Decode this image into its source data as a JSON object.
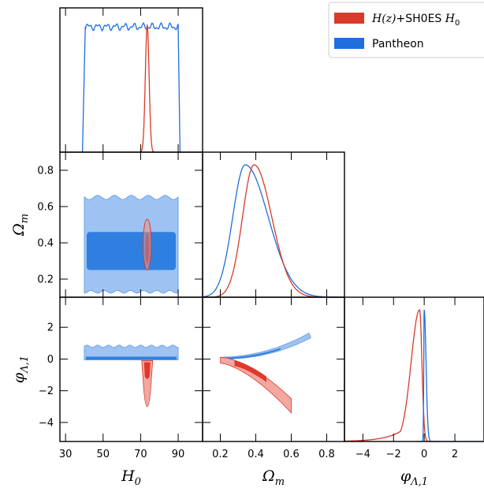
{
  "chart_data": {
    "type": "corner",
    "parameters": [
      {
        "key": "H0",
        "label": "H",
        "sub": "0",
        "range": [
          27,
          103
        ],
        "ticks": [
          "30",
          "50",
          "70",
          "90"
        ],
        "tick_values": [
          30,
          50,
          70,
          90
        ]
      },
      {
        "key": "Om",
        "label": "Ω",
        "sub": "m",
        "range": [
          0.1,
          0.9
        ],
        "ticks": [
          "0.2",
          "0.4",
          "0.6",
          "0.8"
        ],
        "tick_values": [
          0.2,
          0.4,
          0.6,
          0.8
        ]
      },
      {
        "key": "phi",
        "label": "φ",
        "sub": "Λ,1",
        "range": [
          -5.2,
          3.9
        ],
        "ticks": [
          "−4",
          "−2",
          "0",
          "2"
        ],
        "tick_values": [
          -4,
          -2,
          0,
          2
        ]
      }
    ],
    "y_ticks": {
      "Om": [
        "0.2",
        "0.4",
        "0.6",
        "0.8"
      ],
      "phi": [
        "2",
        "0",
        "−2",
        "−4"
      ]
    },
    "legend": {
      "placement": "top-right",
      "entries": [
        {
          "label_math": "H(z)",
          "label_rest": "+SH0ES ",
          "label_math2": "H",
          "label_sub": "0",
          "color": "#d93a2a"
        },
        {
          "label_plain": "Pantheon",
          "color": "#1f6fdc"
        }
      ]
    },
    "series": [
      {
        "name": "H(z)+SH0ES H0",
        "color": "#d93a2a",
        "marginals": {
          "H0": {
            "center": 73.5,
            "sigma": 1.0
          },
          "Om": {
            "peak": 0.39,
            "range": [
              0.2,
              0.6
            ]
          },
          "phi": {
            "peak": -0.3,
            "range": [
              -4.8,
              0
            ]
          }
        },
        "contours": {
          "H0_Om": {
            "center": [
              73.5,
              0.39
            ],
            "ellipse_2sigma": [
              2.2,
              0.14
            ]
          },
          "H0_phi": {
            "center": [
              73.5,
              -1.0
            ],
            "range_phi": [
              -3.0,
              -0.3
            ]
          },
          "Om_phi": {
            "ridge": [
              [
                0.2,
                0.0
              ],
              [
                0.35,
                -0.5
              ],
              [
                0.5,
                -1.6
              ],
              [
                0.6,
                -2.9
              ]
            ]
          }
        }
      },
      {
        "name": "Pantheon",
        "color": "#1f6fdc",
        "marginals": {
          "H0": {
            "flat_range": [
              40,
              90
            ]
          },
          "Om": {
            "peak": 0.34,
            "range": [
              0.2,
              0.9
            ]
          },
          "phi": {
            "peak": 0.0,
            "range": [
              -0.2,
              0.5
            ]
          }
        },
        "contours": {
          "H0_Om": {
            "range_H0": [
              40,
              90
            ],
            "range_Om_2sigma": [
              0.13,
              0.67
            ],
            "range_Om_1sigma": [
              0.25,
              0.46
            ]
          },
          "H0_phi": {
            "range_H0": [
              40,
              90
            ],
            "range_phi": [
              0.0,
              0.7
            ]
          },
          "Om_phi": {
            "ridge": [
              [
                0.2,
                0.0
              ],
              [
                0.4,
                0.2
              ],
              [
                0.6,
                0.7
              ],
              [
                0.7,
                1.4
              ]
            ]
          }
        }
      }
    ],
    "grid": false
  },
  "colors": {
    "red_line": "#d93a2a",
    "red_fill_light": "#f2a8a0",
    "red_fill_dark": "#e0392a",
    "blue_line": "#1f6fdc",
    "blue_fill_light": "#9ec2f2",
    "blue_fill_dark": "#2f7fe0"
  }
}
